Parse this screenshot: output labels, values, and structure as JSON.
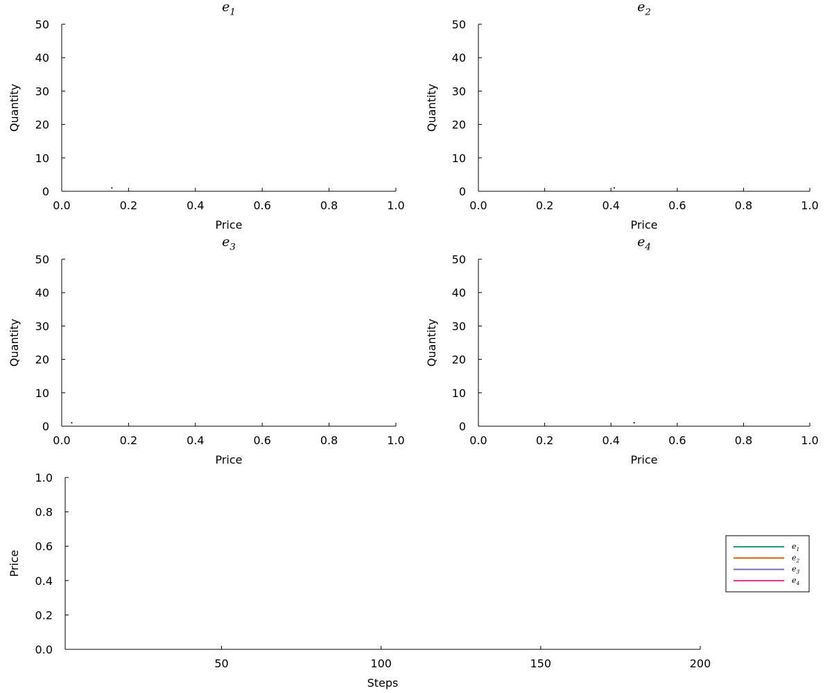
{
  "chart_data": [
    {
      "type": "scatter",
      "title": "e",
      "title_sub": "1",
      "xlabel": "Price",
      "ylabel": "Quantity",
      "xlim": [
        0,
        1
      ],
      "ylim": [
        0,
        50
      ],
      "xticks": [
        "0.0",
        "0.2",
        "0.4",
        "0.6",
        "0.8",
        "1.0"
      ],
      "yticks": [
        "0",
        "10",
        "20",
        "30",
        "40",
        "50"
      ],
      "grid": false,
      "points": [
        {
          "x": 0.15,
          "y": 1
        }
      ]
    },
    {
      "type": "scatter",
      "title": "e",
      "title_sub": "2",
      "xlabel": "Price",
      "ylabel": "Quantity",
      "xlim": [
        0,
        1
      ],
      "ylim": [
        0,
        50
      ],
      "xticks": [
        "0.0",
        "0.2",
        "0.4",
        "0.6",
        "0.8",
        "1.0"
      ],
      "yticks": [
        "0",
        "10",
        "20",
        "30",
        "40",
        "50"
      ],
      "grid": false,
      "points": [
        {
          "x": 0.41,
          "y": 1
        }
      ]
    },
    {
      "type": "scatter",
      "title": "e",
      "title_sub": "3",
      "xlabel": "Price",
      "ylabel": "Quantity",
      "xlim": [
        0,
        1
      ],
      "ylim": [
        0,
        50
      ],
      "xticks": [
        "0.0",
        "0.2",
        "0.4",
        "0.6",
        "0.8",
        "1.0"
      ],
      "yticks": [
        "0",
        "10",
        "20",
        "30",
        "40",
        "50"
      ],
      "grid": false,
      "points": [
        {
          "x": 0.03,
          "y": 1
        }
      ]
    },
    {
      "type": "scatter",
      "title": "e",
      "title_sub": "4",
      "xlabel": "Price",
      "ylabel": "Quantity",
      "xlim": [
        0,
        1
      ],
      "ylim": [
        0,
        50
      ],
      "xticks": [
        "0.0",
        "0.2",
        "0.4",
        "0.6",
        "0.8",
        "1.0"
      ],
      "yticks": [
        "0",
        "10",
        "20",
        "30",
        "40",
        "50"
      ],
      "grid": false,
      "points": [
        {
          "x": 0.47,
          "y": 1
        }
      ]
    },
    {
      "type": "line",
      "xlabel": "Steps",
      "ylabel": "Price",
      "xlim": [
        1,
        200
      ],
      "ylim": [
        0,
        1
      ],
      "xticks": [
        "50",
        "100",
        "150",
        "200"
      ],
      "yticks": [
        "0.0",
        "0.2",
        "0.4",
        "0.6",
        "0.8",
        "1.0"
      ],
      "grid": false,
      "legend_position": "right",
      "series": [
        {
          "name": "e",
          "name_sub": "1",
          "color": "#1b9e77",
          "values": []
        },
        {
          "name": "e",
          "name_sub": "2",
          "color": "#d95f02",
          "values": []
        },
        {
          "name": "e",
          "name_sub": "3",
          "color": "#7570b3",
          "values": []
        },
        {
          "name": "e",
          "name_sub": "4",
          "color": "#e7298a",
          "values": []
        }
      ]
    }
  ]
}
